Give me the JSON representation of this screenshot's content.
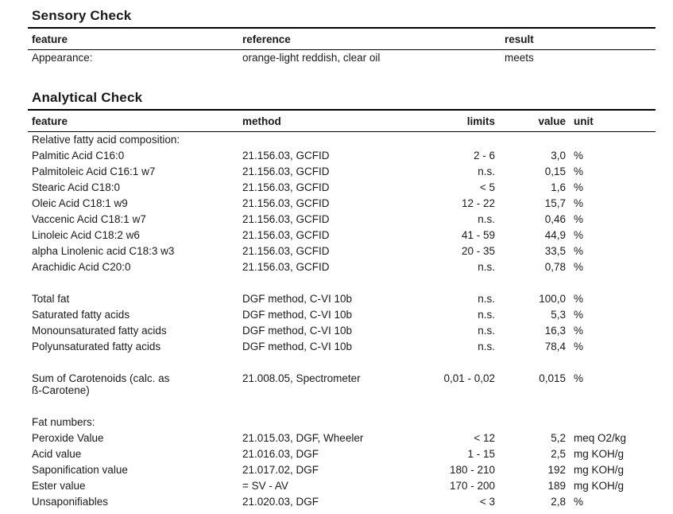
{
  "page": {
    "background_color": "#ffffff",
    "text_color": "#1a1a1a",
    "rule_color": "#000000"
  },
  "sensory": {
    "title": "Sensory Check",
    "columns": {
      "feature": "feature",
      "reference": "reference",
      "result": "result"
    },
    "rows": [
      {
        "feature": "Appearance:",
        "reference": "orange-light reddish, clear oil",
        "result": "meets"
      }
    ]
  },
  "analytical": {
    "title": "Analytical Check",
    "columns": {
      "feature": "feature",
      "method": "method",
      "limits": "limits",
      "value": "value",
      "unit": "unit"
    },
    "rows": [
      {
        "feature": "Relative fatty acid composition:",
        "method": "",
        "limits": "",
        "value": "",
        "unit": ""
      },
      {
        "feature": "Palmitic Acid C16:0",
        "method": "21.156.03, GCFID",
        "limits": "2 - 6",
        "value": "3,0",
        "unit": "%"
      },
      {
        "feature": "Palmitoleic Acid C16:1 w7",
        "method": "21.156.03, GCFID",
        "limits": "n.s.",
        "value": "0,15",
        "unit": "%"
      },
      {
        "feature": "Stearic Acid C18:0",
        "method": "21.156.03, GCFID",
        "limits": "< 5",
        "value": "1,6",
        "unit": "%"
      },
      {
        "feature": "Oleic Acid C18:1 w9",
        "method": "21.156.03, GCFID",
        "limits": "12 - 22",
        "value": "15,7",
        "unit": "%"
      },
      {
        "feature": "Vaccenic Acid C18:1 w7",
        "method": "21.156.03, GCFID",
        "limits": "n.s.",
        "value": "0,46",
        "unit": "%"
      },
      {
        "feature": "Linoleic Acid C18:2 w6",
        "method": "21.156.03, GCFID",
        "limits": "41 - 59",
        "value": "44,9",
        "unit": "%"
      },
      {
        "feature": "alpha Linolenic acid C18:3 w3",
        "method": "21.156.03, GCFID",
        "limits": "20 - 35",
        "value": "33,5",
        "unit": "%"
      },
      {
        "feature": "Arachidic Acid C20:0",
        "method": "21.156.03, GCFID",
        "limits": "n.s.",
        "value": "0,78",
        "unit": "%"
      },
      {
        "feature": "",
        "method": "",
        "limits": "",
        "value": "",
        "unit": ""
      },
      {
        "feature": "Total fat",
        "method": "DGF method, C-VI 10b",
        "limits": "n.s.",
        "value": "100,0",
        "unit": "%"
      },
      {
        "feature": "Saturated fatty acids",
        "method": "DGF method, C-VI 10b",
        "limits": "n.s.",
        "value": "5,3",
        "unit": "%"
      },
      {
        "feature": "Monounsaturated fatty acids",
        "method": "DGF method, C-VI 10b",
        "limits": "n.s.",
        "value": "16,3",
        "unit": "%"
      },
      {
        "feature": "Polyunsaturated fatty acids",
        "method": "DGF method, C-VI 10b",
        "limits": "n.s.",
        "value": "78,4",
        "unit": "%"
      },
      {
        "feature": "",
        "method": "",
        "limits": "",
        "value": "",
        "unit": ""
      },
      {
        "feature": "Sum of Carotenoids (calc. as\nß-Carotene)",
        "method": "21.008.05, Spectrometer",
        "limits": "0,01 - 0,02",
        "value": "0,015",
        "unit": "%"
      },
      {
        "feature": "",
        "method": "",
        "limits": "",
        "value": "",
        "unit": ""
      },
      {
        "feature": "Fat numbers:",
        "method": "",
        "limits": "",
        "value": "",
        "unit": ""
      },
      {
        "feature": "Peroxide Value",
        "method": "21.015.03, DGF, Wheeler",
        "limits": "< 12",
        "value": "5,2",
        "unit": "meq O2/kg"
      },
      {
        "feature": "Acid value",
        "method": "21.016.03, DGF",
        "limits": "1 - 15",
        "value": "2,5",
        "unit": "mg KOH/g"
      },
      {
        "feature": "Saponification value",
        "method": "21.017.02, DGF",
        "limits": "180 - 210",
        "value": "192",
        "unit": "mg KOH/g"
      },
      {
        "feature": "Ester value",
        "method": "= SV - AV",
        "limits": "170 - 200",
        "value": "189",
        "unit": "mg KOH/g"
      },
      {
        "feature": "Unsaponifiables",
        "method": "21.020.03, DGF",
        "limits": "< 3",
        "value": "2,8",
        "unit": "%"
      }
    ]
  }
}
